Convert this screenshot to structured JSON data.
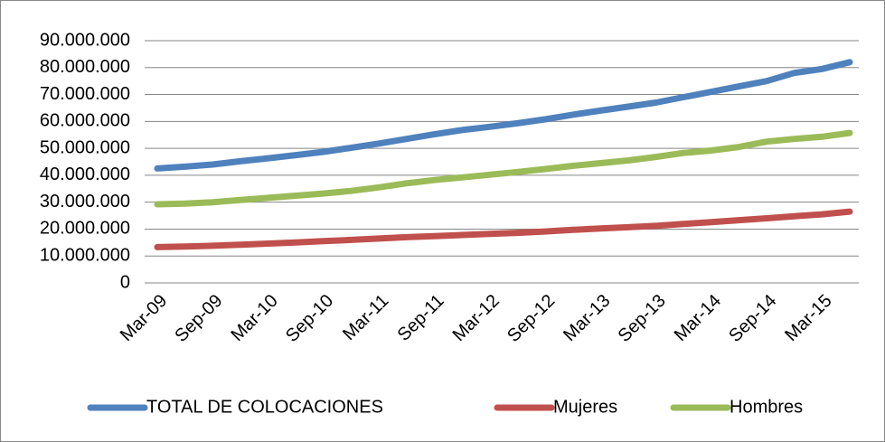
{
  "chart_data": {
    "type": "line",
    "categories": [
      "Mar-09",
      null,
      "Sep-09",
      null,
      "Mar-10",
      null,
      "Sep-10",
      null,
      "Mar-11",
      null,
      "Sep-11",
      null,
      "Mar-12",
      null,
      "Sep-12",
      null,
      "Mar-13",
      null,
      "Sep-13",
      null,
      "Mar-14",
      null,
      "Sep-14",
      null,
      "Mar-15",
      null
    ],
    "series": [
      {
        "name": "TOTAL DE COLOCACIONES",
        "color": "#4f81bd",
        "values": [
          42500000,
          43200000,
          44000000,
          45200000,
          46300000,
          47500000,
          48700000,
          50200000,
          51800000,
          53500000,
          55200000,
          56800000,
          58000000,
          59300000,
          60800000,
          62500000,
          64000000,
          65500000,
          67000000,
          69000000,
          71000000,
          73000000,
          75000000,
          78000000,
          79500000,
          82000000
        ]
      },
      {
        "name": "Mujeres",
        "color": "#c0504d",
        "values": [
          13300000,
          13500000,
          13800000,
          14200000,
          14600000,
          15000000,
          15500000,
          16000000,
          16500000,
          17000000,
          17400000,
          17800000,
          18200000,
          18600000,
          19100000,
          19700000,
          20200000,
          20700000,
          21200000,
          21900000,
          22600000,
          23300000,
          24000000,
          24800000,
          25500000,
          26500000
        ]
      },
      {
        "name": "Hombres",
        "color": "#9bbb59",
        "values": [
          29200000,
          29500000,
          30000000,
          30800000,
          31600000,
          32400000,
          33200000,
          34200000,
          35500000,
          37000000,
          38200000,
          39200000,
          40200000,
          41200000,
          42300000,
          43500000,
          44500000,
          45500000,
          46800000,
          48300000,
          49200000,
          50500000,
          52500000,
          53500000,
          54300000,
          55700000
        ]
      }
    ],
    "ylim": [
      0,
      90000000
    ],
    "yticks": [
      0,
      {
        "value": 10000000,
        "label": "10.000.000"
      },
      {
        "value": 20000000,
        "label": "20.000.000"
      },
      {
        "value": 30000000,
        "label": "30.000.000"
      },
      {
        "value": 40000000,
        "label": "40.000.000"
      },
      {
        "value": 50000000,
        "label": "50.000.000"
      },
      {
        "value": 60000000,
        "label": "60.000.000"
      },
      {
        "value": 70000000,
        "label": "70.000.000"
      },
      {
        "value": 80000000,
        "label": "80.000.000"
      },
      {
        "value": 90000000,
        "label": "90.000.000"
      }
    ],
    "grid": true
  }
}
